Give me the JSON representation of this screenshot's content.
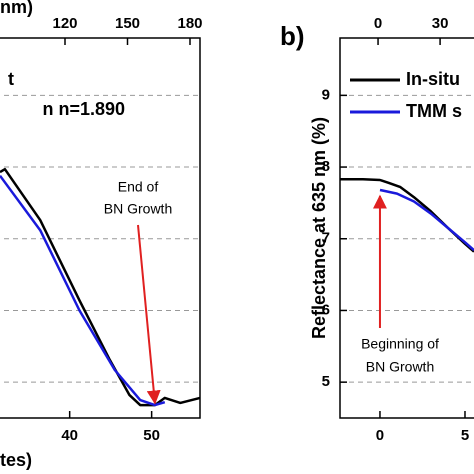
{
  "chart_data": [
    {
      "type": "line",
      "x_label": "tes)",
      "x2_label": "nm)",
      "xlim": [
        31.5,
        55.9
      ],
      "xticks": [
        40,
        50
      ],
      "x2lim": [
        88.8,
        184.8
      ],
      "x2ticks": [
        120,
        150,
        180
      ],
      "ylim": [
        4.5,
        9.8
      ],
      "yticks": [
        5,
        6,
        7,
        8,
        9
      ],
      "grid": true,
      "series": [
        {
          "name": "t",
          "color": "#000000",
          "x": [
            31.5,
            32.1,
            36.4,
            41.2,
            44.9,
            47.3,
            48.6,
            50.4,
            51.6,
            53.5,
            55.9
          ],
          "values": [
            7.93,
            7.97,
            7.26,
            6.14,
            5.31,
            4.82,
            4.68,
            4.68,
            4.78,
            4.71,
            4.78
          ]
        },
        {
          "name": "n n=1.890",
          "color": "#1a1adb",
          "x": [
            31.5,
            36.4,
            41.2,
            45.5,
            48.6,
            50.4,
            51.6
          ],
          "values": [
            7.88,
            7.12,
            6.0,
            5.17,
            4.75,
            4.68,
            4.72
          ]
        }
      ],
      "annotations": [
        {
          "text": "End of",
          "x": 50.4,
          "y": 4.68
        },
        {
          "text": "BN Growth"
        }
      ]
    },
    {
      "type": "line",
      "panel_label": "b)",
      "y_label": "Reflectance at 635 nm (%)",
      "xlim": [
        -2.35,
        5.53
      ],
      "xticks": [
        0,
        5
      ],
      "x2lim": [
        -18.4,
        46.4
      ],
      "x2ticks": [
        0,
        30
      ],
      "ylim": [
        4.5,
        9.8
      ],
      "yticks": [
        5,
        6,
        7,
        8,
        9
      ],
      "grid": true,
      "series": [
        {
          "name": "In-situ",
          "color": "#000000",
          "x": [
            -2.35,
            -1.0,
            0.0,
            0.5,
            1.2,
            2.0,
            3.0,
            4.0,
            5.0,
            5.53
          ],
          "values": [
            7.83,
            7.83,
            7.82,
            7.78,
            7.72,
            7.58,
            7.38,
            7.15,
            6.93,
            6.82
          ]
        },
        {
          "name": "TMM s",
          "color": "#1a1adb",
          "x": [
            0.0,
            1.0,
            2.0,
            3.0,
            4.0,
            5.0,
            5.53
          ],
          "values": [
            7.68,
            7.63,
            7.52,
            7.35,
            7.15,
            6.95,
            6.84
          ]
        }
      ],
      "annotations": [
        {
          "text": "Beginning of",
          "x": 0.0,
          "y": 7.68
        },
        {
          "text": "BN Growth"
        }
      ]
    }
  ]
}
